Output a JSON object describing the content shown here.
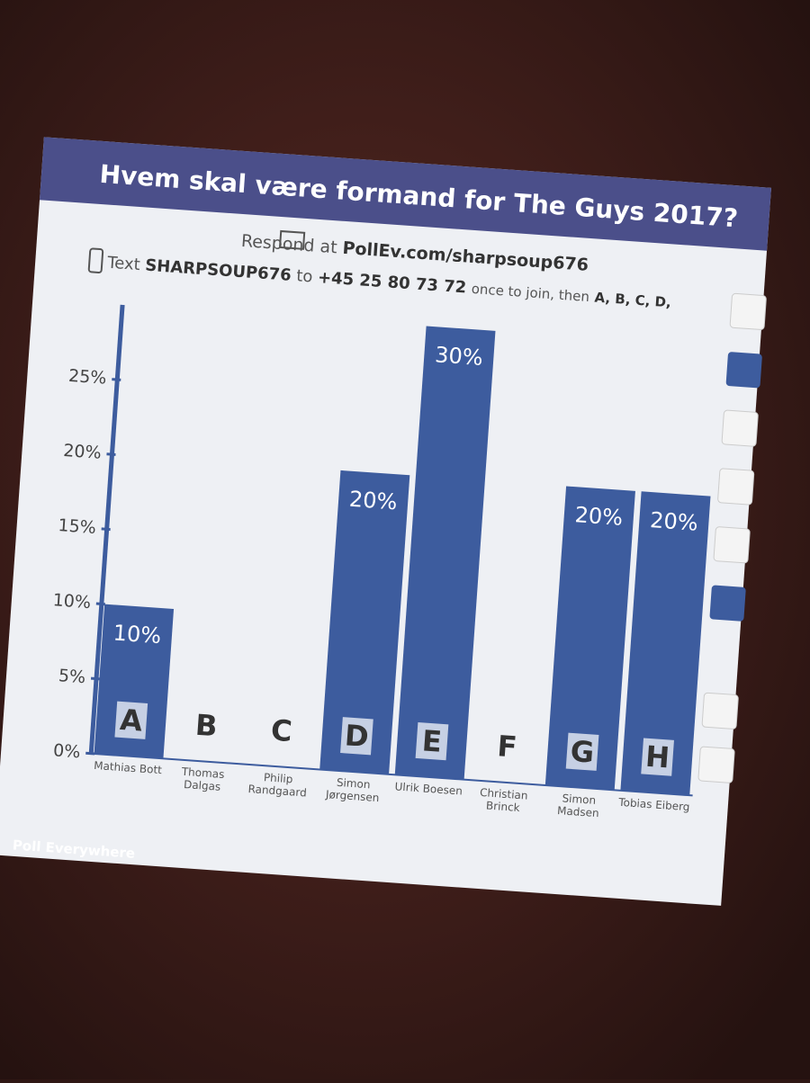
{
  "chart_data": {
    "type": "bar",
    "title": "Hvem skal være formand for The Guys 2017?",
    "respond_prefix": "Respond at",
    "respond_url": "PollEv.com/sharpsoup676",
    "text_prefix": "Text",
    "text_code": "SHARPSOUP676",
    "text_to": "to",
    "text_phone": "+45 25 80 73 72",
    "text_join": "once to join, then",
    "text_options": "A, B, C, D,",
    "brand": "Poll Everywhere",
    "categories": [
      "Mathias Bott",
      "Thomas Dalgas",
      "Philip Randgaard",
      "Simon Jørgensen",
      "Ulrik Boesen",
      "Christian Brinck",
      "Simon Madsen",
      "Tobias Eiberg"
    ],
    "letters": [
      "A",
      "B",
      "C",
      "D",
      "E",
      "F",
      "G",
      "H"
    ],
    "values": [
      10,
      0,
      0,
      20,
      30,
      0,
      20,
      20
    ],
    "value_labels": [
      "10%",
      null,
      null,
      "20%",
      "30%",
      null,
      "20%",
      "20%"
    ],
    "color": "#3d5c9e",
    "ylim": [
      0,
      30
    ],
    "yticks": [
      {
        "value": 0,
        "label": "0%"
      },
      {
        "value": 5,
        "label": "5%"
      },
      {
        "value": 10,
        "label": "10%"
      },
      {
        "value": 15,
        "label": "15%"
      },
      {
        "value": 20,
        "label": "20%"
      },
      {
        "value": 25,
        "label": "25%"
      }
    ]
  }
}
